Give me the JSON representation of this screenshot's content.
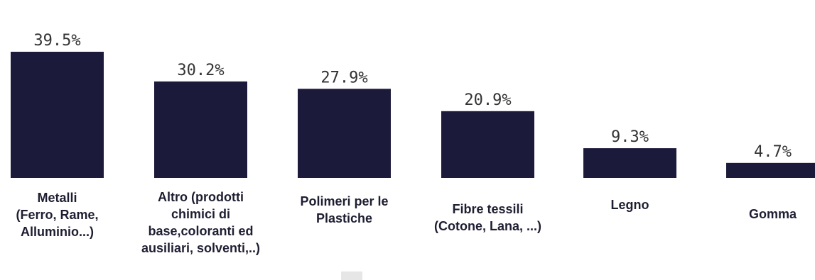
{
  "chart_data": {
    "type": "bar",
    "title": "",
    "xlabel": "",
    "ylabel": "",
    "ylim": [
      0,
      40
    ],
    "grid": false,
    "bar_color": "#1c1a3b",
    "categories": [
      [
        "Metalli",
        "(Ferro, Rame,",
        "Alluminio...)"
      ],
      [
        "Altro (prodotti",
        "chimici di",
        "base,coloranti ed",
        "ausiliari, solventi,..)"
      ],
      [
        "Polimeri per le",
        "Plastiche"
      ],
      [
        "Fibre tessili",
        "(Cotone, Lana, ...)"
      ],
      [
        "Legno"
      ],
      [
        "Gomma"
      ]
    ],
    "values": [
      39.5,
      30.2,
      27.9,
      20.9,
      9.3,
      4.7
    ],
    "value_labels": [
      "39.5%",
      "30.2%",
      "27.9%",
      "20.9%",
      "9.3%",
      "4.7%"
    ]
  }
}
